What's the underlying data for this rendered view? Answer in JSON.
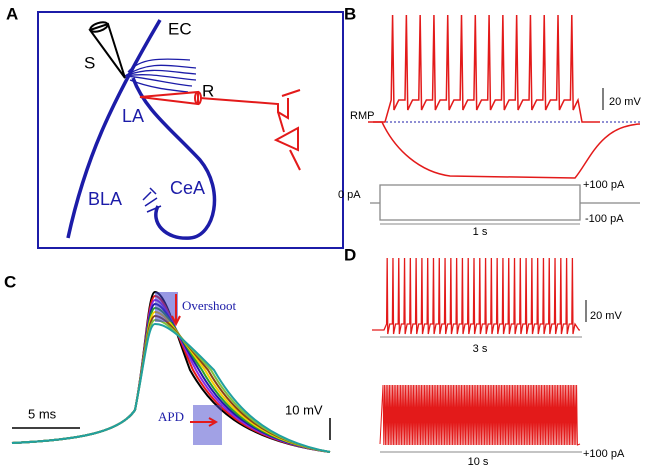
{
  "panel_a": {
    "label": "A",
    "regions": {
      "ec": "EC",
      "s": "S",
      "r": "R",
      "la": "LA",
      "bla": "BLA",
      "cea": "CeA"
    }
  },
  "panel_b": {
    "label": "B",
    "rmp": "RMP",
    "voltage_scale": "20 mV",
    "zero_current": "0 pA",
    "positive_step": "+100 pA",
    "negative_step": "-100 pA",
    "time_scale": "1 s"
  },
  "panel_c": {
    "label": "C",
    "overshoot": "Overshoot",
    "apd": "APD",
    "time_scale": "5 ms",
    "voltage_scale": "10 mV"
  },
  "panel_d": {
    "label": "D",
    "voltage_scale": "20 mV",
    "time_scale_short": "3 s",
    "time_scale_long": "10 s",
    "current_step": "+100 pA"
  }
}
